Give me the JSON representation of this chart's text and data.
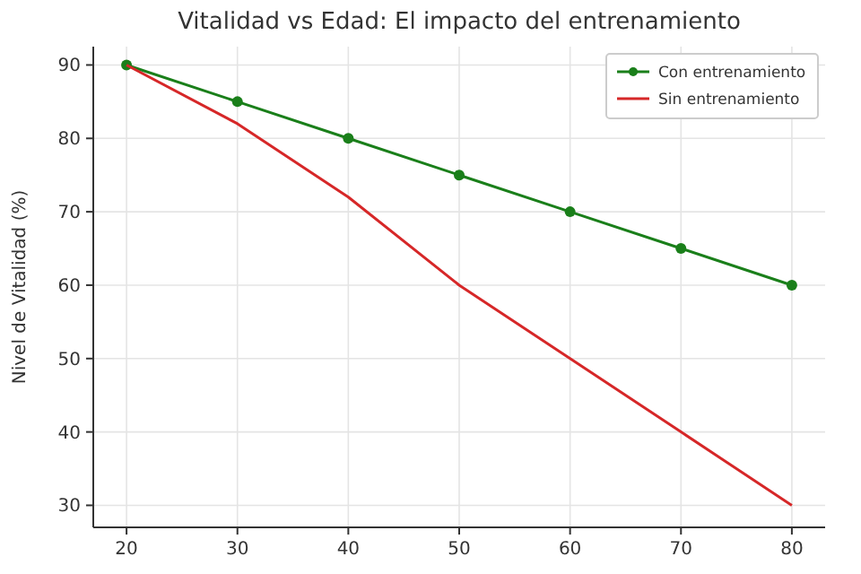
{
  "chart_data": {
    "type": "line",
    "title": "Vitalidad vs Edad: El impacto del entrenamiento",
    "ylabel": "Nivel de Vitalidad (%)",
    "x": [
      20,
      30,
      40,
      50,
      60,
      70,
      80
    ],
    "series": [
      {
        "name": "Con entrenamiento",
        "color": "#1a7f1a",
        "marker": "circle",
        "values": [
          90,
          85,
          80,
          75,
          70,
          65,
          60
        ]
      },
      {
        "name": "Sin entrenamiento",
        "color": "#d62728",
        "marker": "none",
        "values": [
          90,
          82,
          72,
          60,
          50,
          40,
          30
        ]
      }
    ],
    "xlim": [
      17,
      83
    ],
    "xticks": [
      20,
      30,
      40,
      50,
      60,
      70,
      80
    ],
    "ylim": [
      27,
      92.5
    ],
    "yticks": [
      30,
      40,
      50,
      60,
      70,
      80,
      90
    ],
    "grid": true,
    "legend": "top right",
    "line_style": "solid"
  }
}
